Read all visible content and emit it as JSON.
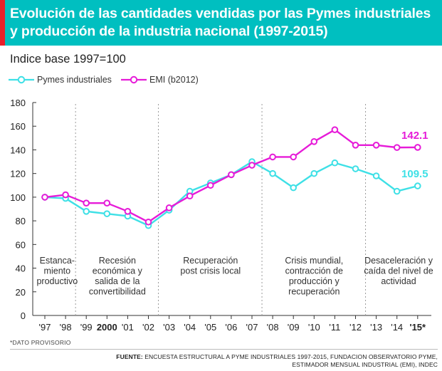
{
  "header": {
    "title": "Evolución de las cantidades vendidas por las Pymes industriales y producción de la industria nacional (1997-2015)"
  },
  "subtitle": "Indice base 1997=100",
  "colors": {
    "accent_bar": "#e8202a",
    "header_bg": "#00bfc0",
    "pymes": "#3ee0e6",
    "emi": "#e61bd8"
  },
  "legend": [
    {
      "label": "Pymes industriales",
      "color": "#3ee0e6"
    },
    {
      "label": "EMI (b2012)",
      "color": "#e61bd8"
    }
  ],
  "chart_data": {
    "type": "line",
    "title": "Evolución de las cantidades vendidas por las Pymes industriales y producción de la industria nacional (1997-2015)",
    "ylabel": "Indice base 1997=100",
    "ylim": [
      0,
      180
    ],
    "yticks": [
      0,
      20,
      40,
      60,
      80,
      100,
      120,
      140,
      160,
      180
    ],
    "x_labels": [
      "'97",
      "'98",
      "'99",
      "2000",
      "'01",
      "'02",
      "'03",
      "'04",
      "'05",
      "'06",
      "'07",
      "'08",
      "'09",
      "'10",
      "'11",
      "'12",
      "'13",
      "'14",
      "'15*"
    ],
    "bold_x_labels": [
      "2000",
      "'15*"
    ],
    "series": [
      {
        "name": "Pymes industriales",
        "color": "#3ee0e6",
        "values": [
          100,
          99,
          88,
          86,
          84,
          76,
          89,
          105,
          112,
          119,
          130,
          120,
          108,
          120,
          129,
          124,
          118,
          105,
          109.5
        ],
        "end_label": "109.5"
      },
      {
        "name": "EMI (b2012)",
        "color": "#e61bd8",
        "values": [
          100,
          102,
          95,
          95,
          88,
          79,
          91,
          101,
          110,
          119,
          127,
          134,
          134,
          147,
          157,
          144,
          144,
          142,
          142.1
        ],
        "end_label": "142.1"
      }
    ],
    "period_dividers_after_index": [
      1,
      5,
      10,
      15
    ],
    "periods": [
      {
        "lines": [
          "Estanca-",
          "miento",
          "productivo"
        ]
      },
      {
        "lines": [
          "Recesión",
          "económica y",
          "salida de la",
          "convertibilidad"
        ]
      },
      {
        "lines": [
          "Recuperación",
          "post crisis local"
        ]
      },
      {
        "lines": [
          "Crisis mundial,",
          "contracción de",
          "producción y",
          "recuperación"
        ]
      },
      {
        "lines": [
          "Desaceleración y",
          "caída del nivel de",
          "actividad"
        ]
      }
    ],
    "grid": false
  },
  "footnote": "*DATO PROVISORIO",
  "source": {
    "label": "FUENTE:",
    "line1": " ENCUESTA ESTRUCTURAL A PYME INDUSTRIALES 1997-2015, FUNDACION OBSERVATORIO PYME,",
    "line2": "ESTIMADOR MENSUAL INDUSTRIAL (EMI), INDEC"
  }
}
